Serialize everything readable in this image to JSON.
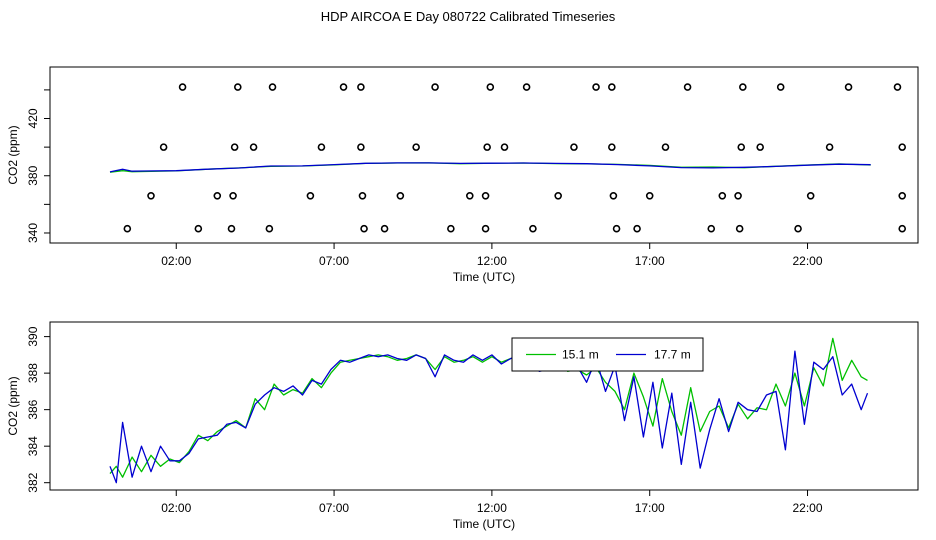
{
  "title": "HDP AIRCOA E  Day 080722  Calibrated Timeseries",
  "colors": {
    "green": "#00c000",
    "blue": "#0000d0",
    "axis": "#000000"
  },
  "chart_data": [
    {
      "type": "scatter",
      "xlabel": "Time (UTC)",
      "ylabel": "CO2 (ppm)",
      "xlim": [
        -2.0,
        25.5
      ],
      "ylim": [
        333,
        456
      ],
      "xticks": [
        2,
        7,
        12,
        17,
        22
      ],
      "xtick_labels": [
        "02:00",
        "07:00",
        "12:00",
        "17:00",
        "22:00"
      ],
      "yticks": [
        340,
        380,
        420
      ],
      "ytick_labels": [
        "340",
        "380",
        "420"
      ],
      "minor_yticks": [
        360,
        400,
        440
      ],
      "points": {
        "levels": [
          343,
          366,
          400,
          442
        ],
        "x_by_level": [
          [
            0.45,
            2.7,
            3.75,
            4.95,
            7.95,
            8.6,
            10.7,
            11.8,
            13.3,
            15.95,
            16.6,
            18.95,
            19.85,
            21.7,
            25.0
          ],
          [
            1.2,
            3.3,
            3.8,
            6.25,
            7.9,
            9.1,
            11.3,
            11.8,
            14.1,
            15.85,
            17.0,
            19.3,
            19.8,
            22.1,
            25.0
          ],
          [
            1.6,
            3.85,
            4.45,
            6.6,
            7.85,
            9.6,
            11.85,
            12.4,
            14.6,
            15.8,
            17.5,
            19.9,
            20.5,
            22.7,
            25.0
          ],
          [
            2.2,
            3.95,
            5.05,
            7.3,
            7.85,
            10.2,
            11.95,
            13.1,
            15.3,
            15.8,
            18.2,
            19.95,
            21.15,
            23.3,
            24.85
          ]
        ]
      },
      "series": [
        {
          "name": "",
          "color": "#00c000",
          "x": [
            -0.1,
            0.3,
            0.6,
            1.0,
            2.0,
            3.0,
            4.0,
            5.0,
            6.0,
            7.0,
            8.0,
            9.0,
            10.0,
            11.0,
            12.0,
            13.0,
            14.0,
            15.0,
            16.0,
            17.0,
            18.0,
            19.0,
            20.0,
            21.0,
            22.0,
            23.0,
            24.0
          ],
          "y": [
            382.5,
            383.5,
            382.8,
            383.0,
            383.4,
            384.6,
            385.5,
            386.6,
            386.8,
            387.6,
            388.6,
            388.9,
            389.0,
            388.4,
            388.8,
            388.9,
            388.5,
            388.3,
            387.9,
            387.2,
            385.9,
            386.1,
            385.6,
            386.6,
            387.5,
            388.3,
            387.5
          ]
        },
        {
          "name": "",
          "color": "#0000d0",
          "x": [
            -0.1,
            0.3,
            0.6,
            1.0,
            2.0,
            3.0,
            4.0,
            5.0,
            6.0,
            7.0,
            8.0,
            9.0,
            10.0,
            11.0,
            12.0,
            13.0,
            14.0,
            15.0,
            16.0,
            17.0,
            18.0,
            19.0,
            20.0,
            21.0,
            22.0,
            23.0,
            24.0
          ],
          "y": [
            382.7,
            384.5,
            383.2,
            383.3,
            383.5,
            384.6,
            385.4,
            386.8,
            386.9,
            387.8,
            388.7,
            389.0,
            389.0,
            388.6,
            388.8,
            388.9,
            388.6,
            388.4,
            387.8,
            386.9,
            385.7,
            385.5,
            385.9,
            386.5,
            387.4,
            388.1,
            387.7
          ]
        }
      ]
    },
    {
      "type": "line",
      "xlabel": "Time (UTC)",
      "ylabel": "CO2 (ppm)",
      "xlim": [
        -2.0,
        25.5
      ],
      "ylim": [
        381.6,
        390.8
      ],
      "xticks": [
        2,
        7,
        12,
        17,
        22
      ],
      "xtick_labels": [
        "02:00",
        "07:00",
        "12:00",
        "17:00",
        "22:00"
      ],
      "yticks": [
        382,
        384,
        386,
        388,
        390
      ],
      "ytick_labels": [
        "382",
        "384",
        "386",
        "388",
        "390"
      ],
      "legend": {
        "position": "top-center",
        "entries": [
          "15.1 m",
          "17.7 m"
        ]
      },
      "series": [
        {
          "name": "15.1 m",
          "color": "#00c000",
          "x": [
            -0.1,
            0.1,
            0.3,
            0.6,
            0.9,
            1.2,
            1.5,
            1.8,
            2.1,
            2.4,
            2.7,
            3.0,
            3.3,
            3.6,
            3.9,
            4.2,
            4.5,
            4.8,
            5.1,
            5.4,
            5.7,
            6.0,
            6.3,
            6.6,
            6.9,
            7.2,
            7.5,
            7.8,
            8.1,
            8.4,
            8.7,
            9.0,
            9.3,
            9.6,
            9.9,
            10.2,
            10.5,
            10.8,
            11.1,
            11.4,
            11.7,
            12.0,
            12.3,
            12.6,
            12.9,
            13.2,
            13.5,
            13.8,
            14.1,
            14.4,
            14.7,
            15.0,
            15.3,
            15.6,
            15.9,
            16.2,
            16.5,
            16.8,
            17.1,
            17.4,
            17.7,
            18.0,
            18.3,
            18.6,
            18.9,
            19.2,
            19.5,
            19.8,
            20.1,
            20.4,
            20.7,
            21.0,
            21.3,
            21.6,
            21.9,
            22.2,
            22.5,
            22.8,
            23.1,
            23.4,
            23.7,
            23.9
          ],
          "y": [
            382.5,
            382.9,
            382.3,
            383.4,
            382.6,
            383.5,
            382.9,
            383.3,
            383.1,
            383.7,
            384.6,
            384.3,
            384.8,
            385.1,
            385.4,
            385.0,
            386.6,
            386.0,
            387.4,
            386.8,
            387.1,
            386.9,
            387.7,
            387.2,
            388.0,
            388.6,
            388.7,
            388.8,
            388.9,
            389.0,
            388.9,
            388.7,
            388.8,
            389.0,
            388.8,
            388.2,
            388.9,
            388.6,
            388.7,
            388.9,
            388.6,
            388.9,
            388.6,
            388.8,
            388.9,
            388.4,
            388.5,
            388.3,
            388.7,
            388.1,
            388.2,
            387.9,
            388.3,
            387.5,
            387.0,
            386.0,
            388.0,
            386.7,
            385.1,
            387.7,
            385.9,
            384.6,
            387.2,
            384.8,
            385.9,
            386.2,
            385.0,
            386.3,
            385.5,
            386.1,
            386.0,
            387.4,
            386.2,
            388.0,
            386.2,
            388.3,
            387.3,
            389.9,
            387.6,
            388.7,
            387.8,
            387.6
          ]
        },
        {
          "name": "17.7 m",
          "color": "#0000d0",
          "x": [
            -0.1,
            0.1,
            0.3,
            0.6,
            0.9,
            1.2,
            1.5,
            1.8,
            2.1,
            2.4,
            2.7,
            3.0,
            3.3,
            3.6,
            3.9,
            4.2,
            4.5,
            4.8,
            5.1,
            5.4,
            5.7,
            6.0,
            6.3,
            6.6,
            6.9,
            7.2,
            7.5,
            7.8,
            8.1,
            8.4,
            8.7,
            9.0,
            9.3,
            9.6,
            9.9,
            10.2,
            10.5,
            10.8,
            11.1,
            11.4,
            11.7,
            12.0,
            12.3,
            12.6,
            12.9,
            13.2,
            13.5,
            13.8,
            14.1,
            14.4,
            14.7,
            15.0,
            15.3,
            15.6,
            15.9,
            16.2,
            16.5,
            16.8,
            17.1,
            17.4,
            17.7,
            18.0,
            18.3,
            18.6,
            18.9,
            19.2,
            19.5,
            19.8,
            20.1,
            20.4,
            20.7,
            21.0,
            21.3,
            21.6,
            21.9,
            22.2,
            22.5,
            22.8,
            23.1,
            23.4,
            23.7,
            23.9
          ],
          "y": [
            382.9,
            382.0,
            385.3,
            382.3,
            384.0,
            382.6,
            384.0,
            383.2,
            383.2,
            383.6,
            384.4,
            384.5,
            384.6,
            385.2,
            385.3,
            385.0,
            386.3,
            386.8,
            387.2,
            387.0,
            387.3,
            386.8,
            387.6,
            387.4,
            388.2,
            388.7,
            388.6,
            388.8,
            389.0,
            388.9,
            389.0,
            388.8,
            388.7,
            389.0,
            388.8,
            387.8,
            389.0,
            388.7,
            388.6,
            389.0,
            388.7,
            389.0,
            388.5,
            388.8,
            389.0,
            388.6,
            388.1,
            388.2,
            388.8,
            388.2,
            388.4,
            387.5,
            388.8,
            387.0,
            388.4,
            385.4,
            387.8,
            384.5,
            387.5,
            383.9,
            386.9,
            383.0,
            386.4,
            382.8,
            384.9,
            386.6,
            384.8,
            386.4,
            386.0,
            385.9,
            386.8,
            387.0,
            383.8,
            389.2,
            385.2,
            388.6,
            388.2,
            388.9,
            386.8,
            387.4,
            386.0,
            386.9
          ]
        }
      ]
    }
  ]
}
